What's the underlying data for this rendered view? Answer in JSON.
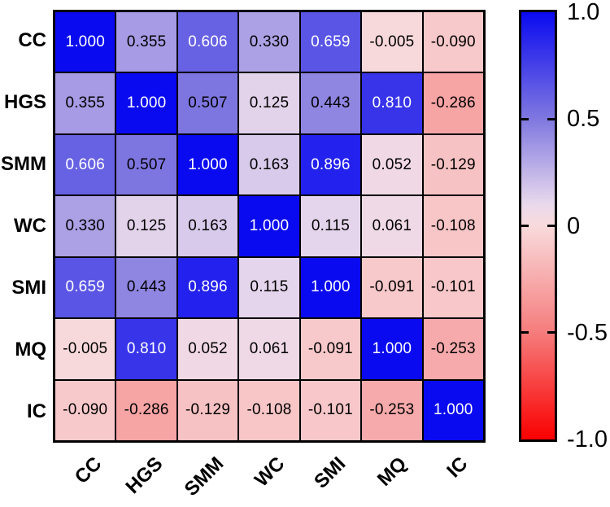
{
  "chart_data": {
    "type": "heatmap",
    "title": "",
    "row_labels": [
      "CC",
      "HGS",
      "SMM",
      "WC",
      "SMI",
      "MQ",
      "IC"
    ],
    "col_labels": [
      "CC",
      "HGS",
      "SMM",
      "WC",
      "SMI",
      "MQ",
      "IC"
    ],
    "matrix": [
      [
        1.0,
        0.355,
        0.606,
        0.33,
        0.659,
        -0.005,
        -0.09
      ],
      [
        0.355,
        1.0,
        0.507,
        0.125,
        0.443,
        0.81,
        -0.286
      ],
      [
        0.606,
        0.507,
        1.0,
        0.163,
        0.896,
        0.052,
        -0.129
      ],
      [
        0.33,
        0.125,
        0.163,
        1.0,
        0.115,
        0.061,
        -0.108
      ],
      [
        0.659,
        0.443,
        0.896,
        0.115,
        1.0,
        -0.091,
        -0.101
      ],
      [
        -0.005,
        0.81,
        0.052,
        0.061,
        -0.091,
        1.0,
        -0.253
      ],
      [
        -0.09,
        -0.286,
        -0.129,
        -0.108,
        -0.101,
        -0.253,
        1.0
      ]
    ],
    "value_decimals": 3,
    "grid_line_color": "#000000",
    "cell_text_color_dark": "#000000",
    "cell_text_color_light": "#ffffff",
    "white_text_threshold": 0.55,
    "colormap_stops": [
      {
        "value": -1.0,
        "rgb": [
          250,
          0,
          0
        ]
      },
      {
        "value": -0.5,
        "rgb": [
          246,
          124,
          124
        ]
      },
      {
        "value": 0.0,
        "rgb": [
          248,
          218,
          220
        ]
      },
      {
        "value": 0.1,
        "rgb": [
          233,
          217,
          236
        ]
      },
      {
        "value": 0.5,
        "rgb": [
          128,
          120,
          224
        ]
      },
      {
        "value": 1.0,
        "rgb": [
          10,
          10,
          240
        ]
      }
    ],
    "colorbar": {
      "vmin": -1.0,
      "vmax": 1.0,
      "tick_labels": [
        "1.0",
        "0.5",
        "0",
        "-0.5",
        "-1.0"
      ],
      "tick_values": [
        1.0,
        0.5,
        0.0,
        -0.5,
        -1.0
      ],
      "inner_tick_values": [
        0.5,
        0.0,
        -0.5
      ],
      "legend_position": "right"
    }
  }
}
